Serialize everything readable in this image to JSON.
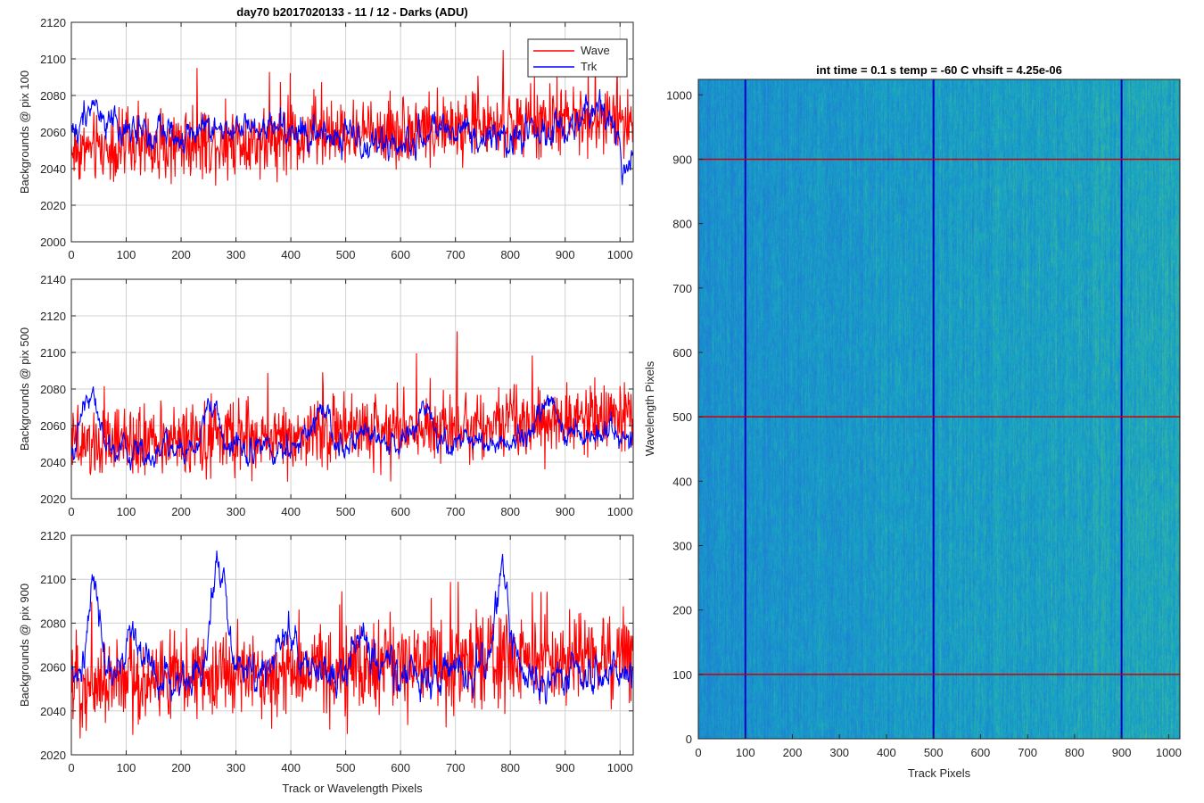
{
  "figure": {
    "main_title": "day70 b2017020133 - 11 / 12 - Darks (ADU)"
  },
  "chart_data": [
    {
      "type": "line",
      "ylabel": "Backgrounds @ pix 100",
      "xlabel": "",
      "xlim": [
        0,
        1024
      ],
      "ylim": [
        2000,
        2120
      ],
      "xticks": [
        0,
        100,
        200,
        300,
        400,
        500,
        600,
        700,
        800,
        900,
        1000
      ],
      "yticks": [
        2000,
        2020,
        2040,
        2060,
        2080,
        2100,
        2120
      ],
      "grid": true,
      "legend": {
        "position": "top-right",
        "entries": [
          "Wave",
          "Trk"
        ]
      },
      "series": [
        {
          "name": "Wave",
          "color": "#ff0000",
          "x": [
            0,
            1023
          ],
          "mean": [
            2050,
            2068
          ],
          "noise": 9,
          "spike_rate": 0.06,
          "spike_amp": 45,
          "smooth": 0,
          "bumps": []
        },
        {
          "name": "Trk",
          "color": "#0000ff",
          "x": [
            0,
            1023
          ],
          "mean": [
            2062,
            2058
          ],
          "noise": 6,
          "spike_rate": 0.01,
          "spike_amp": 10,
          "smooth": 0.75,
          "bumps": [
            [
              40,
              15,
              18
            ],
            [
              560,
              -8,
              60
            ],
            [
              950,
              14,
              40
            ],
            [
              1010,
              -20,
              10
            ]
          ]
        }
      ]
    },
    {
      "type": "line",
      "ylabel": "Backgrounds @ pix 500",
      "xlabel": "",
      "xlim": [
        0,
        1024
      ],
      "ylim": [
        2020,
        2140
      ],
      "xticks": [
        0,
        100,
        200,
        300,
        400,
        500,
        600,
        700,
        800,
        900,
        1000
      ],
      "yticks": [
        2020,
        2040,
        2060,
        2080,
        2100,
        2120,
        2140
      ],
      "grid": true,
      "series": [
        {
          "name": "Wave",
          "color": "#ff0000",
          "x": [
            0,
            1023
          ],
          "mean": [
            2048,
            2066
          ],
          "noise": 9,
          "spike_rate": 0.06,
          "spike_amp": 45,
          "smooth": 0,
          "bumps": []
        },
        {
          "name": "Trk",
          "color": "#0000ff",
          "x": [
            0,
            1023
          ],
          "mean": [
            2045,
            2055
          ],
          "noise": 5,
          "spike_rate": 0.01,
          "spike_amp": 8,
          "smooth": 0.75,
          "bumps": [
            [
              35,
              35,
              20
            ],
            [
              255,
              25,
              18
            ],
            [
              460,
              20,
              20
            ],
            [
              640,
              15,
              25
            ],
            [
              870,
              18,
              25
            ]
          ]
        }
      ]
    },
    {
      "type": "line",
      "ylabel": "Backgrounds @ pix 900",
      "xlabel": "Track or Wavelength Pixels",
      "xlim": [
        0,
        1024
      ],
      "ylim": [
        2020,
        2120
      ],
      "xticks": [
        0,
        100,
        200,
        300,
        400,
        500,
        600,
        700,
        800,
        900,
        1000
      ],
      "yticks": [
        2020,
        2040,
        2060,
        2080,
        2100,
        2120
      ],
      "grid": true,
      "series": [
        {
          "name": "Wave",
          "color": "#ff0000",
          "x": [
            0,
            1023
          ],
          "mean": [
            2052,
            2066
          ],
          "noise": 10,
          "spike_rate": 0.06,
          "spike_amp": 40,
          "smooth": 0,
          "bumps": []
        },
        {
          "name": "Trk",
          "color": "#0000ff",
          "x": [
            0,
            1023
          ],
          "mean": [
            2055,
            2058
          ],
          "noise": 6,
          "spike_rate": 0.01,
          "spike_amp": 8,
          "smooth": 0.75,
          "bumps": [
            [
              42,
              45,
              14
            ],
            [
              115,
              20,
              25
            ],
            [
              270,
              45,
              22
            ],
            [
              390,
              20,
              20
            ],
            [
              530,
              15,
              25
            ],
            [
              785,
              45,
              18
            ]
          ]
        }
      ]
    },
    {
      "type": "heatmap",
      "title": "int time = 0.1 s   temp = -60 C   vhsift = 4.25e-06",
      "xlabel": "Track Pixels",
      "ylabel": "Wavelength Pixels",
      "xlim": [
        0,
        1024
      ],
      "ylim": [
        0,
        1024
      ],
      "xticks": [
        0,
        100,
        200,
        300,
        400,
        500,
        600,
        700,
        800,
        900,
        1000
      ],
      "yticks": [
        0,
        100,
        200,
        300,
        400,
        500,
        600,
        700,
        800,
        900,
        1000
      ],
      "colormap": [
        "#1e82d2",
        "#17a3c4",
        "#3cb79a",
        "#8cc266"
      ],
      "hlines": {
        "color": "#cc0000",
        "y": [
          100,
          500,
          900
        ]
      },
      "vlines": {
        "color": "#0000cc",
        "x": [
          100,
          500,
          900
        ]
      }
    }
  ]
}
